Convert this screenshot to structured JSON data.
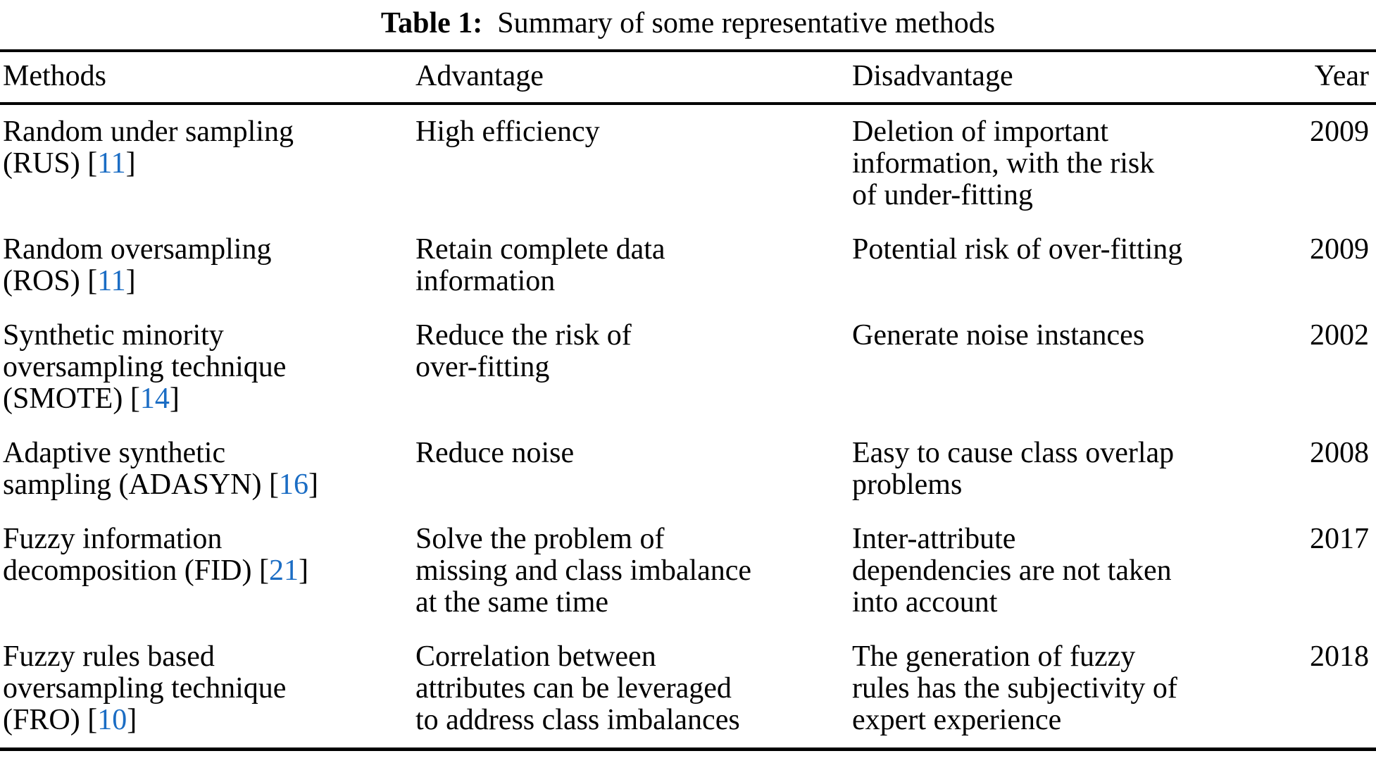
{
  "title": {
    "label": "Table 1:",
    "text": "Summary of some representative methods"
  },
  "symbols": {
    "ref_open": "[",
    "ref_close": "]"
  },
  "colors": {
    "link_blue": "#1b6dc4",
    "text": "#000000",
    "rule": "#000000",
    "background": "#ffffff"
  },
  "table": {
    "headers": {
      "methods": "Methods",
      "advantage": "Advantage",
      "disadvantage": "Disadvantage",
      "year": "Year"
    },
    "rows": [
      {
        "method": "Random under sampling\n(RUS) ",
        "ref": "11",
        "advantage": "High efficiency",
        "disadvantage": "Deletion of important\ninformation, with the risk\nof under-fitting",
        "year": "2009"
      },
      {
        "method": "Random oversampling\n(ROS) ",
        "ref": "11",
        "advantage": "Retain complete data\ninformation",
        "disadvantage": "Potential risk of over-fitting",
        "year": "2009"
      },
      {
        "method": "Synthetic minority\noversampling technique\n(SMOTE) ",
        "ref": "14",
        "advantage": "Reduce the risk of\nover-fitting",
        "disadvantage": "Generate noise instances",
        "year": "2002"
      },
      {
        "method": "Adaptive synthetic\nsampling (ADASYN) ",
        "ref": "16",
        "advantage": "Reduce noise",
        "disadvantage": "Easy to cause class overlap\nproblems",
        "year": "2008"
      },
      {
        "method": "Fuzzy information\ndecomposition (FID) ",
        "ref": "21",
        "advantage": "Solve the problem of\nmissing and class imbalance\nat the same time",
        "disadvantage": "Inter-attribute\ndependencies are not taken\ninto account",
        "year": "2017"
      },
      {
        "method": "Fuzzy rules based\noversampling technique\n(FRO) ",
        "ref": "10",
        "advantage": "Correlation between\nattributes can be leveraged\nto address class imbalances",
        "disadvantage": "The generation of fuzzy\nrules has the subjectivity of\nexpert experience",
        "year": "2018"
      }
    ]
  }
}
